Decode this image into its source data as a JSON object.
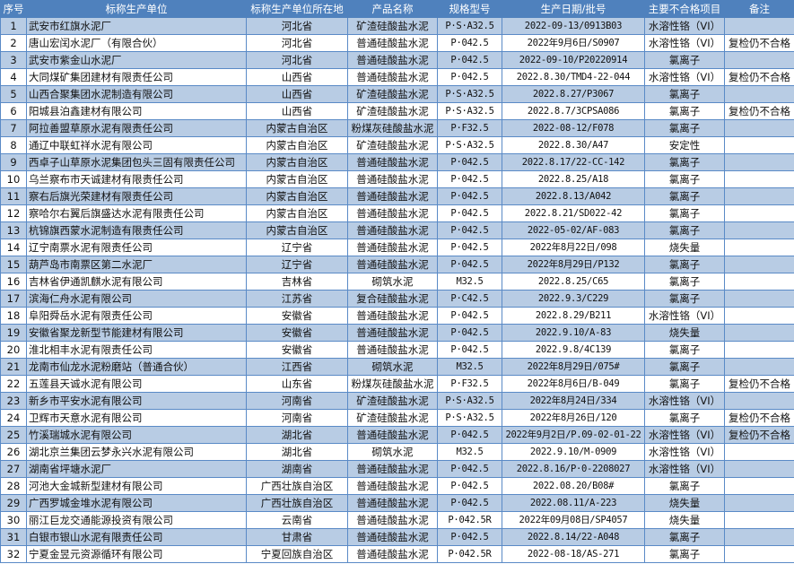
{
  "table": {
    "headers": [
      "序号",
      "标称生产单位",
      "标称生产单位所在地",
      "产品名称",
      "规格型号",
      "生产日期/批号",
      "主要不合格项目",
      "备注"
    ],
    "rows": [
      [
        "1",
        "武安市红旗水泥厂",
        "河北省",
        "矿渣硅酸盐水泥",
        "P·S·A32.5",
        "2022-09-13/0913B03",
        "水溶性铬（VI）",
        ""
      ],
      [
        "2",
        "唐山宏闰水泥厂（有限合伙）",
        "河北省",
        "普通硅酸盐水泥",
        "P·042.5",
        "2022年9月6日/S0907",
        "水溶性铬（VI）",
        "复检仍不合格"
      ],
      [
        "3",
        "武安市紫金山水泥厂",
        "河北省",
        "普通硅酸盐水泥",
        "P·042.5",
        "2022-09-10/P20220914",
        "氯离子",
        ""
      ],
      [
        "4",
        "大同煤矿集团建材有限责任公司",
        "山西省",
        "普通硅酸盐水泥",
        "P·042.5",
        "2022.8.30/TMD4-22-044",
        "水溶性铬（VI）",
        "复检仍不合格"
      ],
      [
        "5",
        "山西合聚集团水泥制造有限公司",
        "山西省",
        "矿渣硅酸盐水泥",
        "P·S·A32.5",
        "2022.8.27/P3067",
        "氯离子",
        ""
      ],
      [
        "6",
        "阳城县泊鑫建材有限公司",
        "山西省",
        "矿渣硅酸盐水泥",
        "P·S·A32.5",
        "2022.8.7/3CPSA086",
        "氯离子",
        "复检仍不合格"
      ],
      [
        "7",
        "阿拉善盟草原水泥有限责任公司",
        "内蒙古自治区",
        "粉煤灰硅酸盐水泥",
        "P·F32.5",
        "2022-08-12/F078",
        "氯离子",
        ""
      ],
      [
        "8",
        "通辽中联虹祥水泥有限公司",
        "内蒙古自治区",
        "矿渣硅酸盐水泥",
        "P·S·A32.5",
        "2022.8.30/A47",
        "安定性",
        ""
      ],
      [
        "9",
        "西卓子山草原水泥集团包头三固有限责任公司",
        "内蒙古自治区",
        "普通硅酸盐水泥",
        "P·042.5",
        "2022.8.17/22-CC-142",
        "氯离子",
        ""
      ],
      [
        "10",
        "乌兰察布市天诚建材有限责任公司",
        "内蒙古自治区",
        "普通硅酸盐水泥",
        "P·042.5",
        "2022.8.25/A18",
        "氯离子",
        ""
      ],
      [
        "11",
        "察右后旗光荣建材有限责任公司",
        "内蒙古自治区",
        "普通硅酸盐水泥",
        "P·042.5",
        "2022.8.13/A042",
        "氯离子",
        ""
      ],
      [
        "12",
        "察哈尔右翼后旗盛达水泥有限责任公司",
        "内蒙古自治区",
        "普通硅酸盐水泥",
        "P·042.5",
        "2022.8.21/SD022-42",
        "氯离子",
        ""
      ],
      [
        "13",
        "杭锦旗西蒙水泥制造有限责任公司",
        "内蒙古自治区",
        "普通硅酸盐水泥",
        "P·042.5",
        "2022-05-02/AF-083",
        "氯离子",
        ""
      ],
      [
        "14",
        "辽宁南票水泥有限责任公司",
        "辽宁省",
        "普通硅酸盐水泥",
        "P·042.5",
        "2022年8月22日/098",
        "烧失量",
        ""
      ],
      [
        "15",
        "葫芦岛市南票区第二水泥厂",
        "辽宁省",
        "普通硅酸盐水泥",
        "P·042.5",
        "2022年8月29日/P132",
        "氯离子",
        ""
      ],
      [
        "16",
        "吉林省伊通凯麒水泥有限公司",
        "吉林省",
        "砌筑水泥",
        "M32.5",
        "2022.8.25/C65",
        "氯离子",
        ""
      ],
      [
        "17",
        "滨海仁舟水泥有限公司",
        "江苏省",
        "复合硅酸盐水泥",
        "P·C42.5",
        "2022.9.3/C229",
        "氯离子",
        ""
      ],
      [
        "18",
        "阜阳舜岳水泥有限责任公司",
        "安徽省",
        "普通硅酸盐水泥",
        "P·042.5",
        "2022.8.29/B211",
        "水溶性铬（VI）",
        ""
      ],
      [
        "19",
        "安徽省聚龙新型节能建材有限公司",
        "安徽省",
        "普通硅酸盐水泥",
        "P·042.5",
        "2022.9.10/A-83",
        "烧失量",
        ""
      ],
      [
        "20",
        "淮北相丰水泥有限责任公司",
        "安徽省",
        "普通硅酸盐水泥",
        "P·042.5",
        "2022.9.8/4C139",
        "氯离子",
        ""
      ],
      [
        "21",
        "龙南市仙龙水泥粉磨站（普通合伙）",
        "江西省",
        "砌筑水泥",
        "M32.5",
        "2022年8月29日/075#",
        "氯离子",
        ""
      ],
      [
        "22",
        "五莲县天诚水泥有限公司",
        "山东省",
        "粉煤灰硅酸盐水泥",
        "P·F32.5",
        "2022年8月6日/B-049",
        "氯离子",
        "复检仍不合格"
      ],
      [
        "23",
        "新乡市平安水泥有限公司",
        "河南省",
        "矿渣硅酸盐水泥",
        "P·S·A32.5",
        "2022年8月24日/334",
        "水溶性铬（VI）",
        ""
      ],
      [
        "24",
        "卫辉市天意水泥有限公司",
        "河南省",
        "矿渣硅酸盐水泥",
        "P·S·A32.5",
        "2022年8月26日/120",
        "氯离子",
        "复检仍不合格"
      ],
      [
        "25",
        "竹溪瑞城水泥有限公司",
        "湖北省",
        "普通硅酸盐水泥",
        "P·042.5",
        "2022年9月2日/P.09-02-01-22",
        "水溶性铬（VI）",
        "复检仍不合格"
      ],
      [
        "26",
        "湖北京兰集团云梦永兴水泥有限公司",
        "湖北省",
        "砌筑水泥",
        "M32.5",
        "2022.9.10/M-0909",
        "水溶性铬（VI）",
        ""
      ],
      [
        "27",
        "湖南省坪塘水泥厂",
        "湖南省",
        "普通硅酸盐水泥",
        "P·042.5",
        "2022.8.16/P·0-2208027",
        "水溶性铬（VI）",
        ""
      ],
      [
        "28",
        "河池大金城新型建材有限公司",
        "广西壮族自治区",
        "普通硅酸盐水泥",
        "P·042.5",
        "2022.08.20/B08#",
        "氯离子",
        ""
      ],
      [
        "29",
        "广西罗城金堆水泥有限公司",
        "广西壮族自治区",
        "普通硅酸盐水泥",
        "P·042.5",
        "2022.08.11/A-223",
        "烧失量",
        ""
      ],
      [
        "30",
        "丽江巨龙交通能源投资有限公司",
        "云南省",
        "普通硅酸盐水泥",
        "P·042.5R",
        "2022年09月08日/SP4057",
        "烧失量",
        ""
      ],
      [
        "31",
        "白银市银山水泥有限责任公司",
        "甘肃省",
        "普通硅酸盐水泥",
        "P·042.5",
        "2022.8.14/22-A048",
        "氯离子",
        ""
      ],
      [
        "32",
        "宁夏金昱元资源循环有限公司",
        "宁夏回族自治区",
        "普通硅酸盐水泥",
        "P·042.5R",
        "2022-08-18/AS-271",
        "氯离子",
        ""
      ]
    ]
  },
  "colors": {
    "header_bg": "#4f81bd",
    "odd_row": "#b8cce4",
    "even_row": "#ffffff",
    "grid": "#5a8ac6"
  }
}
